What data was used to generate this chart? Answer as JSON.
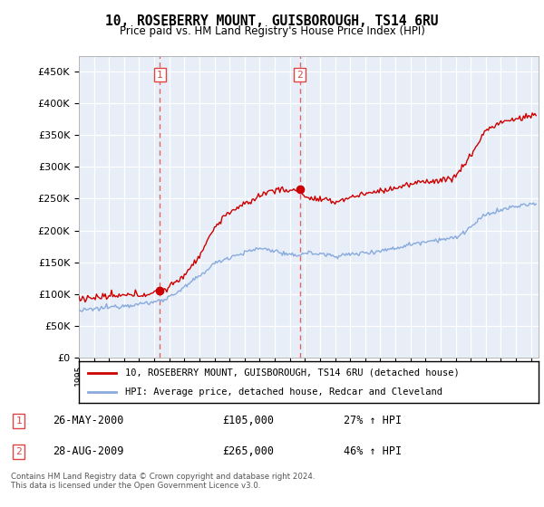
{
  "title": "10, ROSEBERRY MOUNT, GUISBOROUGH, TS14 6RU",
  "subtitle": "Price paid vs. HM Land Registry's House Price Index (HPI)",
  "legend_line1": "10, ROSEBERRY MOUNT, GUISBOROUGH, TS14 6RU (detached house)",
  "legend_line2": "HPI: Average price, detached house, Redcar and Cleveland",
  "annotation1_date": "26-MAY-2000",
  "annotation1_price": 105000,
  "annotation1_hpi": "27% ↑ HPI",
  "annotation2_date": "28-AUG-2009",
  "annotation2_price": 265000,
  "annotation2_hpi": "46% ↑ HPI",
  "footer": "Contains HM Land Registry data © Crown copyright and database right 2024.\nThis data is licensed under the Open Government Licence v3.0.",
  "house_color": "#cc0000",
  "hpi_color": "#88aadd",
  "vline_color": "#dd4444",
  "chart_bg": "#e8eef8",
  "ylim": [
    0,
    475000
  ],
  "yticks": [
    0,
    50000,
    100000,
    150000,
    200000,
    250000,
    300000,
    350000,
    400000,
    450000
  ],
  "sale1_x": 2000.38,
  "sale1_y": 105000,
  "sale2_x": 2009.65,
  "sale2_y": 265000,
  "vline1_x": 2000.38,
  "vline2_x": 2009.65,
  "xmin": 1995.0,
  "xmax": 2025.5
}
